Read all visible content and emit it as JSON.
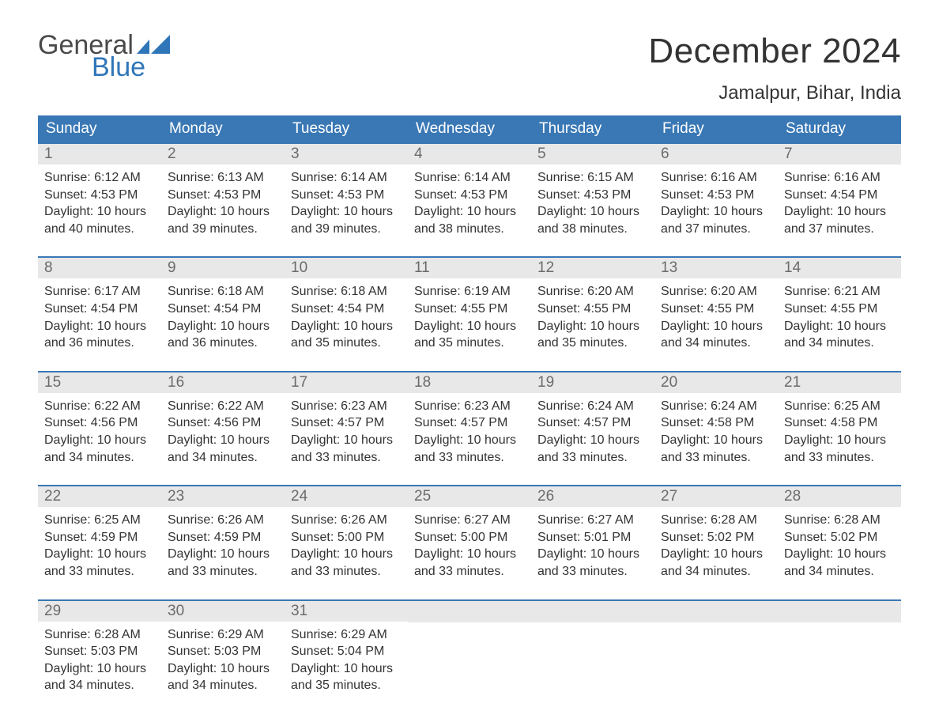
{
  "brand": {
    "word1": "General",
    "word2": "Blue",
    "word1_color": "#4a4a4a",
    "word2_color": "#2f76b8",
    "flag_color": "#2f76b8"
  },
  "header": {
    "month_title": "December 2024",
    "location": "Jamalpur, Bihar, India",
    "title_color": "#333333",
    "title_fontsize": 44,
    "location_fontsize": 24
  },
  "calendar": {
    "header_bg": "#3a78b5",
    "header_text_color": "#ffffff",
    "row_top_border_color": "#3a78b5",
    "day_number_bg": "#e8e8e8",
    "day_number_color": "#6b6b6b",
    "body_text_color": "#333333",
    "weekdays": [
      "Sunday",
      "Monday",
      "Tuesday",
      "Wednesday",
      "Thursday",
      "Friday",
      "Saturday"
    ],
    "weeks": [
      [
        {
          "n": "1",
          "sunrise": "Sunrise: 6:12 AM",
          "sunset": "Sunset: 4:53 PM",
          "d1": "Daylight: 10 hours",
          "d2": "and 40 minutes."
        },
        {
          "n": "2",
          "sunrise": "Sunrise: 6:13 AM",
          "sunset": "Sunset: 4:53 PM",
          "d1": "Daylight: 10 hours",
          "d2": "and 39 minutes."
        },
        {
          "n": "3",
          "sunrise": "Sunrise: 6:14 AM",
          "sunset": "Sunset: 4:53 PM",
          "d1": "Daylight: 10 hours",
          "d2": "and 39 minutes."
        },
        {
          "n": "4",
          "sunrise": "Sunrise: 6:14 AM",
          "sunset": "Sunset: 4:53 PM",
          "d1": "Daylight: 10 hours",
          "d2": "and 38 minutes."
        },
        {
          "n": "5",
          "sunrise": "Sunrise: 6:15 AM",
          "sunset": "Sunset: 4:53 PM",
          "d1": "Daylight: 10 hours",
          "d2": "and 38 minutes."
        },
        {
          "n": "6",
          "sunrise": "Sunrise: 6:16 AM",
          "sunset": "Sunset: 4:53 PM",
          "d1": "Daylight: 10 hours",
          "d2": "and 37 minutes."
        },
        {
          "n": "7",
          "sunrise": "Sunrise: 6:16 AM",
          "sunset": "Sunset: 4:54 PM",
          "d1": "Daylight: 10 hours",
          "d2": "and 37 minutes."
        }
      ],
      [
        {
          "n": "8",
          "sunrise": "Sunrise: 6:17 AM",
          "sunset": "Sunset: 4:54 PM",
          "d1": "Daylight: 10 hours",
          "d2": "and 36 minutes."
        },
        {
          "n": "9",
          "sunrise": "Sunrise: 6:18 AM",
          "sunset": "Sunset: 4:54 PM",
          "d1": "Daylight: 10 hours",
          "d2": "and 36 minutes."
        },
        {
          "n": "10",
          "sunrise": "Sunrise: 6:18 AM",
          "sunset": "Sunset: 4:54 PM",
          "d1": "Daylight: 10 hours",
          "d2": "and 35 minutes."
        },
        {
          "n": "11",
          "sunrise": "Sunrise: 6:19 AM",
          "sunset": "Sunset: 4:55 PM",
          "d1": "Daylight: 10 hours",
          "d2": "and 35 minutes."
        },
        {
          "n": "12",
          "sunrise": "Sunrise: 6:20 AM",
          "sunset": "Sunset: 4:55 PM",
          "d1": "Daylight: 10 hours",
          "d2": "and 35 minutes."
        },
        {
          "n": "13",
          "sunrise": "Sunrise: 6:20 AM",
          "sunset": "Sunset: 4:55 PM",
          "d1": "Daylight: 10 hours",
          "d2": "and 34 minutes."
        },
        {
          "n": "14",
          "sunrise": "Sunrise: 6:21 AM",
          "sunset": "Sunset: 4:55 PM",
          "d1": "Daylight: 10 hours",
          "d2": "and 34 minutes."
        }
      ],
      [
        {
          "n": "15",
          "sunrise": "Sunrise: 6:22 AM",
          "sunset": "Sunset: 4:56 PM",
          "d1": "Daylight: 10 hours",
          "d2": "and 34 minutes."
        },
        {
          "n": "16",
          "sunrise": "Sunrise: 6:22 AM",
          "sunset": "Sunset: 4:56 PM",
          "d1": "Daylight: 10 hours",
          "d2": "and 34 minutes."
        },
        {
          "n": "17",
          "sunrise": "Sunrise: 6:23 AM",
          "sunset": "Sunset: 4:57 PM",
          "d1": "Daylight: 10 hours",
          "d2": "and 33 minutes."
        },
        {
          "n": "18",
          "sunrise": "Sunrise: 6:23 AM",
          "sunset": "Sunset: 4:57 PM",
          "d1": "Daylight: 10 hours",
          "d2": "and 33 minutes."
        },
        {
          "n": "19",
          "sunrise": "Sunrise: 6:24 AM",
          "sunset": "Sunset: 4:57 PM",
          "d1": "Daylight: 10 hours",
          "d2": "and 33 minutes."
        },
        {
          "n": "20",
          "sunrise": "Sunrise: 6:24 AM",
          "sunset": "Sunset: 4:58 PM",
          "d1": "Daylight: 10 hours",
          "d2": "and 33 minutes."
        },
        {
          "n": "21",
          "sunrise": "Sunrise: 6:25 AM",
          "sunset": "Sunset: 4:58 PM",
          "d1": "Daylight: 10 hours",
          "d2": "and 33 minutes."
        }
      ],
      [
        {
          "n": "22",
          "sunrise": "Sunrise: 6:25 AM",
          "sunset": "Sunset: 4:59 PM",
          "d1": "Daylight: 10 hours",
          "d2": "and 33 minutes."
        },
        {
          "n": "23",
          "sunrise": "Sunrise: 6:26 AM",
          "sunset": "Sunset: 4:59 PM",
          "d1": "Daylight: 10 hours",
          "d2": "and 33 minutes."
        },
        {
          "n": "24",
          "sunrise": "Sunrise: 6:26 AM",
          "sunset": "Sunset: 5:00 PM",
          "d1": "Daylight: 10 hours",
          "d2": "and 33 minutes."
        },
        {
          "n": "25",
          "sunrise": "Sunrise: 6:27 AM",
          "sunset": "Sunset: 5:00 PM",
          "d1": "Daylight: 10 hours",
          "d2": "and 33 minutes."
        },
        {
          "n": "26",
          "sunrise": "Sunrise: 6:27 AM",
          "sunset": "Sunset: 5:01 PM",
          "d1": "Daylight: 10 hours",
          "d2": "and 33 minutes."
        },
        {
          "n": "27",
          "sunrise": "Sunrise: 6:28 AM",
          "sunset": "Sunset: 5:02 PM",
          "d1": "Daylight: 10 hours",
          "d2": "and 34 minutes."
        },
        {
          "n": "28",
          "sunrise": "Sunrise: 6:28 AM",
          "sunset": "Sunset: 5:02 PM",
          "d1": "Daylight: 10 hours",
          "d2": "and 34 minutes."
        }
      ],
      [
        {
          "n": "29",
          "sunrise": "Sunrise: 6:28 AM",
          "sunset": "Sunset: 5:03 PM",
          "d1": "Daylight: 10 hours",
          "d2": "and 34 minutes."
        },
        {
          "n": "30",
          "sunrise": "Sunrise: 6:29 AM",
          "sunset": "Sunset: 5:03 PM",
          "d1": "Daylight: 10 hours",
          "d2": "and 34 minutes."
        },
        {
          "n": "31",
          "sunrise": "Sunrise: 6:29 AM",
          "sunset": "Sunset: 5:04 PM",
          "d1": "Daylight: 10 hours",
          "d2": "and 35 minutes."
        },
        null,
        null,
        null,
        null
      ]
    ]
  }
}
